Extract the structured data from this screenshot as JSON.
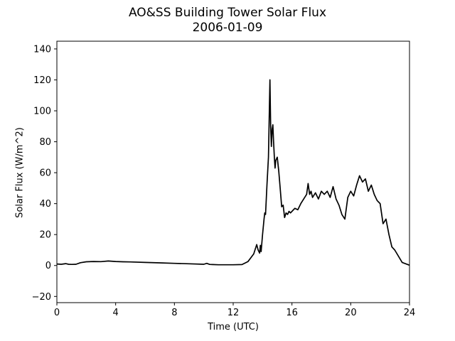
{
  "chart_data": {
    "type": "line",
    "title": "AO&SS Building Tower Solar Flux",
    "subtitle": "2006-01-09",
    "xlabel": "Time (UTC)",
    "ylabel": "Solar Flux (W/m^2)",
    "xlim": [
      0,
      24
    ],
    "ylim": [
      -24,
      145
    ],
    "xticks": [
      0,
      4,
      8,
      12,
      16,
      20,
      24
    ],
    "yticks": [
      -20,
      0,
      20,
      40,
      60,
      80,
      100,
      120,
      140
    ],
    "grid": false,
    "line_color": "#000000",
    "series": [
      {
        "x": [
          0,
          0.3,
          0.6,
          0.8,
          1.0,
          1.3,
          1.6,
          2.0,
          2.5,
          3.0,
          3.5,
          4.0,
          4.5,
          5.0,
          6.0,
          7.0,
          8.0,
          9.0,
          10.0,
          10.2,
          10.4,
          10.6,
          11.0,
          12.0,
          12.6,
          13.0,
          13.2,
          13.4,
          13.6,
          13.7,
          13.8,
          13.85,
          13.9,
          14.0,
          14.1,
          14.15,
          14.2,
          14.3,
          14.4,
          14.5,
          14.55,
          14.6,
          14.65,
          14.7,
          14.75,
          14.8,
          14.85,
          14.9,
          15.0,
          15.1,
          15.2,
          15.3,
          15.4,
          15.5,
          15.6,
          15.7,
          15.8,
          15.9,
          16.0,
          16.2,
          16.4,
          16.6,
          16.8,
          17.0,
          17.1,
          17.2,
          17.3,
          17.4,
          17.6,
          17.8,
          18.0,
          18.2,
          18.4,
          18.6,
          18.8,
          19.0,
          19.2,
          19.4,
          19.6,
          19.8,
          20.0,
          20.2,
          20.4,
          20.6,
          20.8,
          21.0,
          21.2,
          21.4,
          21.6,
          21.8,
          22.0,
          22.2,
          22.4,
          22.6,
          22.8,
          23.0,
          23.5,
          24.0
        ],
        "y": [
          1,
          0.8,
          1.2,
          0.8,
          0.7,
          0.8,
          1.8,
          2.4,
          2.6,
          2.5,
          2.9,
          2.6,
          2.4,
          2.3,
          2,
          1.7,
          1.4,
          1.1,
          0.8,
          1.4,
          0.7,
          0.6,
          0.5,
          0.5,
          0.6,
          2.5,
          5,
          7.5,
          13.5,
          10,
          8,
          13,
          9,
          20,
          30,
          34,
          33,
          52,
          70,
          120,
          90,
          77,
          88,
          91,
          80,
          70,
          63,
          68,
          70,
          61,
          50,
          38,
          39,
          31,
          34,
          33,
          35,
          34,
          35,
          37,
          36,
          40,
          43,
          46,
          53,
          46,
          48,
          44,
          47,
          43,
          48,
          46,
          48,
          44,
          51,
          43,
          39,
          33,
          30,
          44,
          48,
          45,
          52,
          58,
          54,
          56,
          48,
          52,
          46,
          42,
          40,
          27,
          30,
          20,
          12,
          10,
          2,
          0.2
        ]
      }
    ]
  }
}
